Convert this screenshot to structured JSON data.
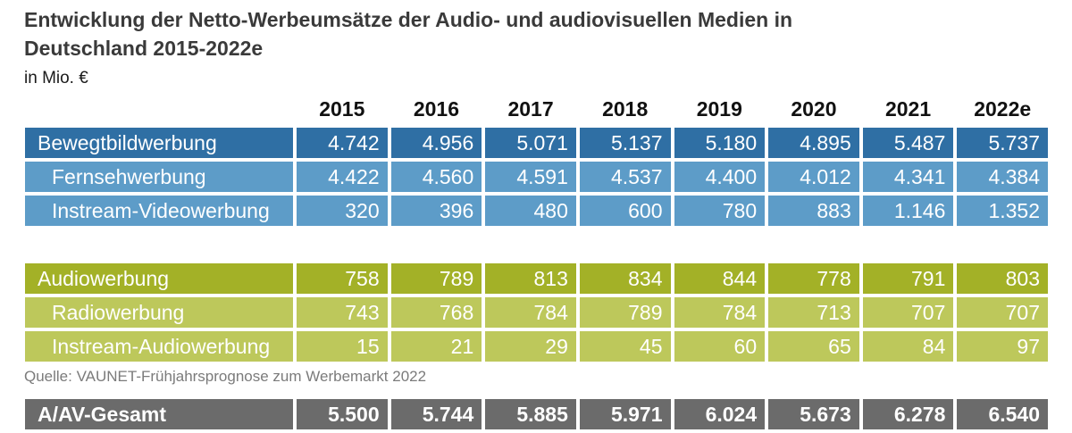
{
  "title": "Entwicklung der Netto-Werbeumsätze der Audio- und audiovisuellen Medien in Deutschland 2015-2022e",
  "unit": "in Mio. €",
  "source": "Quelle: VAUNET-Frühjahrsprognose zum Werbemarkt 2022",
  "colors": {
    "video_main": "#2f6fa4",
    "video_sub": "#5d9cc8",
    "audio_main": "#a3b127",
    "audio_sub": "#bdc85b",
    "total": "#6b6b6b"
  },
  "chart_data": {
    "type": "table",
    "title": "Entwicklung der Netto-Werbeumsätze der Audio- und audiovisuellen Medien in Deutschland 2015-2022e",
    "unit": "in Mio. €",
    "columns": [
      "2015",
      "2016",
      "2017",
      "2018",
      "2019",
      "2020",
      "2021",
      "2022e"
    ],
    "rows": [
      {
        "label": "Bewegtbildwerbung",
        "level": "main",
        "group": "video",
        "values": [
          "4.742",
          "4.956",
          "5.071",
          "5.137",
          "5.180",
          "4.895",
          "5.487",
          "5.737"
        ]
      },
      {
        "label": "Fernsehwerbung",
        "level": "sub",
        "group": "video",
        "values": [
          "4.422",
          "4.560",
          "4.591",
          "4.537",
          "4.400",
          "4.012",
          "4.341",
          "4.384"
        ]
      },
      {
        "label": "Instream-Videowerbung",
        "level": "sub",
        "group": "video",
        "values": [
          "320",
          "396",
          "480",
          "600",
          "780",
          "883",
          "1.146",
          "1.352"
        ]
      },
      {
        "label": "Audiowerbung",
        "level": "main",
        "group": "audio",
        "values": [
          "758",
          "789",
          "813",
          "834",
          "844",
          "778",
          "791",
          "803"
        ]
      },
      {
        "label": "Radiowerbung",
        "level": "sub",
        "group": "audio",
        "values": [
          "743",
          "768",
          "784",
          "789",
          "784",
          "713",
          "707",
          "707"
        ]
      },
      {
        "label": "Instream-Audiowerbung",
        "level": "sub",
        "group": "audio",
        "values": [
          "15",
          "21",
          "29",
          "45",
          "60",
          "65",
          "84",
          "97"
        ]
      },
      {
        "label": "A/AV-Gesamt",
        "level": "total",
        "group": "total",
        "values": [
          "5.500",
          "5.744",
          "5.885",
          "5.971",
          "6.024",
          "5.673",
          "6.278",
          "6.540"
        ]
      }
    ]
  }
}
